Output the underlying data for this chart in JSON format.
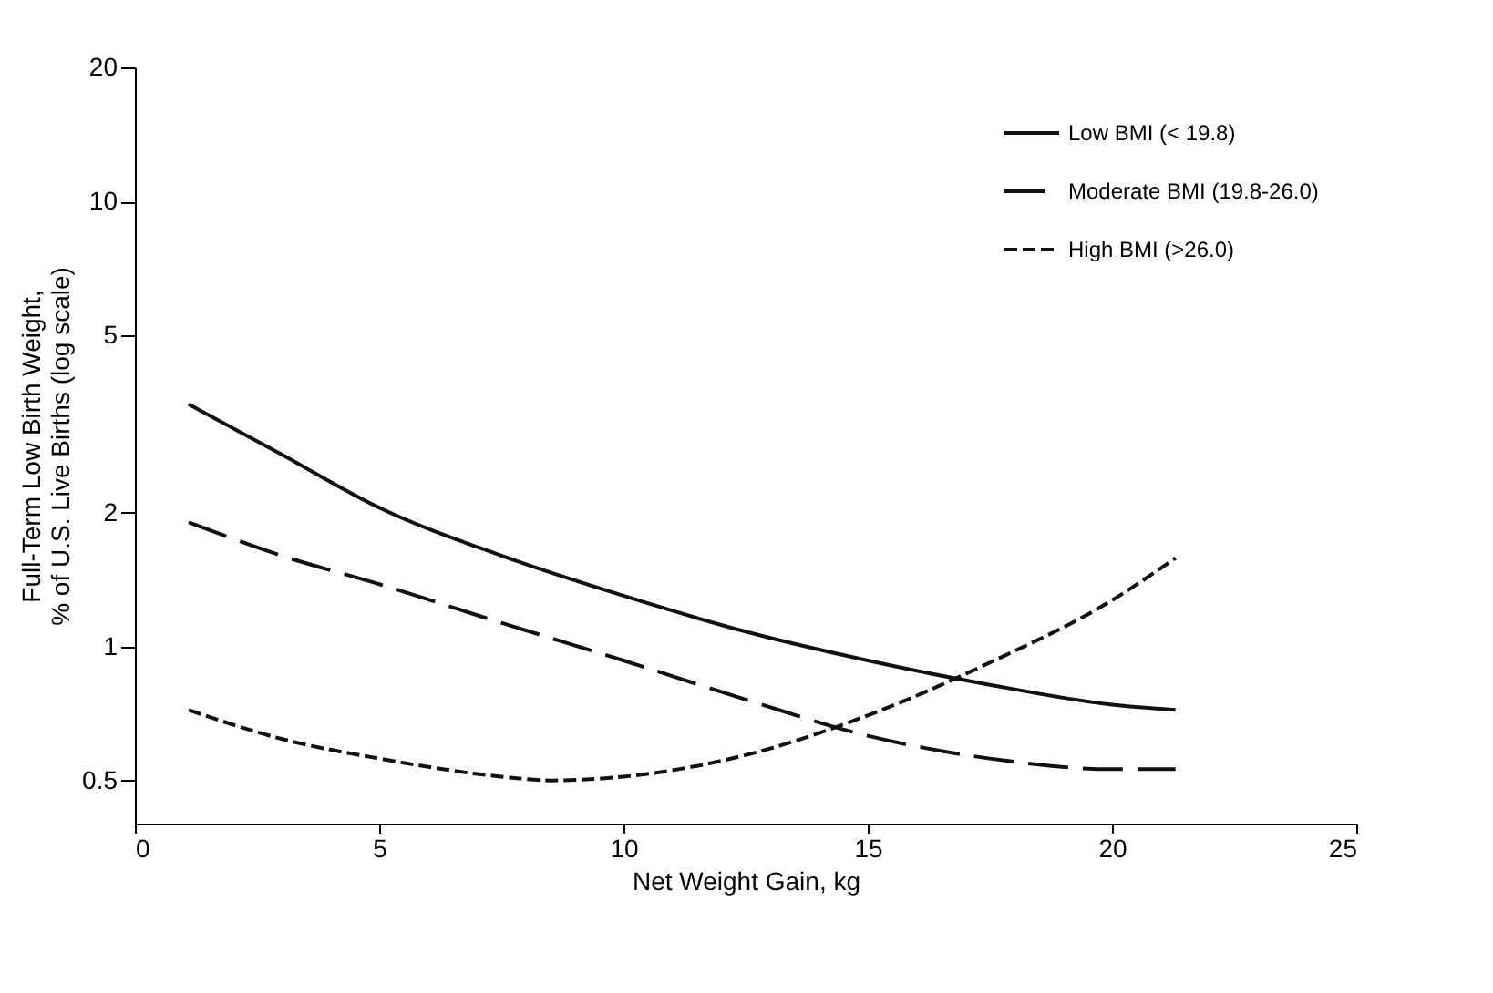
{
  "chart_data": {
    "type": "line",
    "xlabel": "Net Weight Gain, kg",
    "ylabel": "Full-Term Low Birth Weight,\n% of U.S. Live Births (log scale)",
    "log": "y",
    "xlim": [
      0,
      25
    ],
    "xticks": [
      0,
      5,
      10,
      15,
      20,
      25
    ],
    "ylim": [
      0.4,
      20
    ],
    "yticks": [
      0.5,
      1,
      2,
      5,
      10,
      20
    ],
    "grid": false,
    "legend": "top right",
    "marker": "none",
    "series": [
      {
        "name": "Low BMI (< 19.8)",
        "color": "#111111",
        "line_style": "solid",
        "x": [
          1.1,
          3,
          5,
          7.5,
          10,
          12.5,
          15,
          17.5,
          20,
          21.3
        ],
        "values": [
          3.5,
          2.7,
          2.05,
          1.6,
          1.3,
          1.08,
          0.93,
          0.82,
          0.74,
          0.72
        ]
      },
      {
        "name": "Moderate BMI (19.8-26.0)",
        "color": "#111111",
        "line_style": "dashed",
        "x": [
          1.1,
          3,
          5,
          7.5,
          10,
          12.5,
          15,
          17.5,
          20,
          21.3
        ],
        "values": [
          1.9,
          1.6,
          1.38,
          1.13,
          0.93,
          0.76,
          0.63,
          0.56,
          0.53,
          0.53
        ]
      },
      {
        "name": "High BMI (>26.0)",
        "color": "#111111",
        "line_style": "dotted",
        "x": [
          1.1,
          3,
          5,
          7.5,
          8.5,
          10,
          12.5,
          15,
          17.5,
          20,
          21.3
        ],
        "values": [
          0.72,
          0.62,
          0.56,
          0.51,
          0.5,
          0.51,
          0.57,
          0.7,
          0.92,
          1.27,
          1.58
        ]
      }
    ]
  }
}
